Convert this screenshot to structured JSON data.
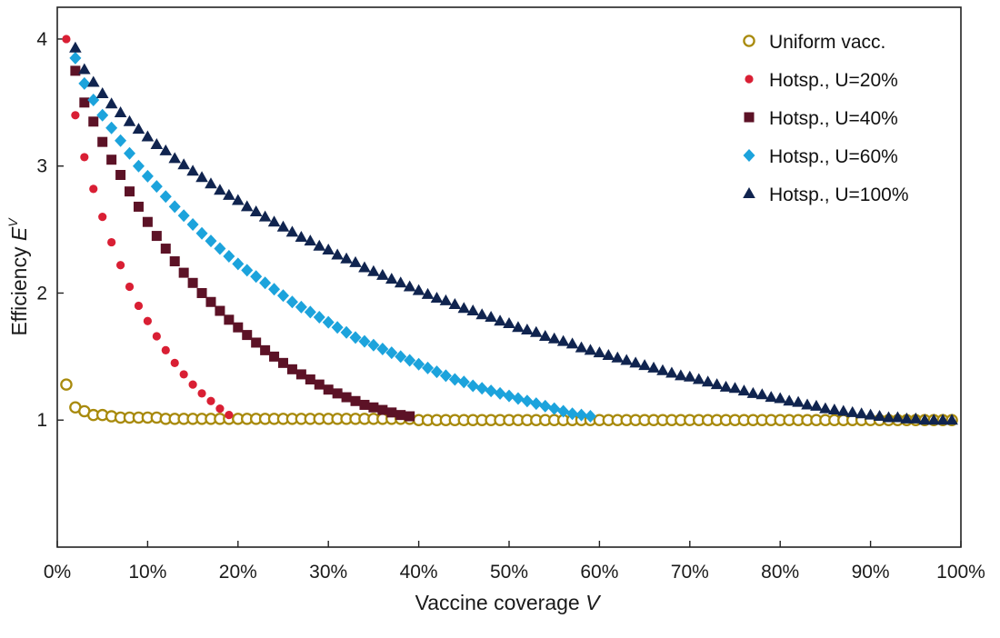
{
  "chart_data": {
    "type": "scatter",
    "title": "",
    "xlabel": "Vaccine coverage",
    "xlabel_var": "V",
    "ylabel": "Efficiency",
    "ylabel_var": "E",
    "ylabel_sup": "V",
    "xlim": [
      0,
      100
    ],
    "ylim": [
      0,
      4.25
    ],
    "x_ticks": [
      0,
      10,
      20,
      30,
      40,
      50,
      60,
      70,
      80,
      90,
      100
    ],
    "x_tick_labels": [
      "0%",
      "10%",
      "20%",
      "30%",
      "40%",
      "50%",
      "60%",
      "70%",
      "80%",
      "90%",
      "100%"
    ],
    "y_ticks": [
      1,
      2,
      3,
      4
    ],
    "y_tick_labels": [
      "1",
      "2",
      "3",
      "4"
    ],
    "grid": false,
    "legend_position": "top-right",
    "series": [
      {
        "name": "Uniform vacc.",
        "marker": "circle-open",
        "color": "#a88a0c",
        "x": [
          1,
          2,
          3,
          4,
          5,
          6,
          7,
          8,
          9,
          10,
          11,
          12,
          13,
          14,
          15,
          16,
          17,
          18,
          19,
          20,
          21,
          22,
          23,
          24,
          25,
          26,
          27,
          28,
          29,
          30,
          31,
          32,
          33,
          34,
          35,
          36,
          37,
          38,
          39,
          40,
          41,
          42,
          43,
          44,
          45,
          46,
          47,
          48,
          49,
          50,
          51,
          52,
          53,
          54,
          55,
          56,
          57,
          58,
          59,
          60,
          61,
          62,
          63,
          64,
          65,
          66,
          67,
          68,
          69,
          70,
          71,
          72,
          73,
          74,
          75,
          76,
          77,
          78,
          79,
          80,
          81,
          82,
          83,
          84,
          85,
          86,
          87,
          88,
          89,
          90,
          91,
          92,
          93,
          94,
          95,
          96,
          97,
          98,
          99
        ],
        "y": [
          1.28,
          1.1,
          1.07,
          1.04,
          1.04,
          1.03,
          1.02,
          1.02,
          1.02,
          1.02,
          1.02,
          1.01,
          1.01,
          1.01,
          1.01,
          1.01,
          1.01,
          1.01,
          1.01,
          1.01,
          1.01,
          1.01,
          1.01,
          1.01,
          1.01,
          1.01,
          1.01,
          1.01,
          1.01,
          1.01,
          1.01,
          1.01,
          1.01,
          1.01,
          1.01,
          1.01,
          1.01,
          1.01,
          1.01,
          1.0,
          1.0,
          1.0,
          1.0,
          1.0,
          1.0,
          1.0,
          1.0,
          1.0,
          1.0,
          1.0,
          1.0,
          1.0,
          1.0,
          1.0,
          1.0,
          1.0,
          1.0,
          1.0,
          1.0,
          1.0,
          1.0,
          1.0,
          1.0,
          1.0,
          1.0,
          1.0,
          1.0,
          1.0,
          1.0,
          1.0,
          1.0,
          1.0,
          1.0,
          1.0,
          1.0,
          1.0,
          1.0,
          1.0,
          1.0,
          1.0,
          1.0,
          1.0,
          1.0,
          1.0,
          1.0,
          1.0,
          1.0,
          1.0,
          1.0,
          1.0,
          1.0,
          1.0,
          1.0,
          1.0,
          1.0,
          1.0,
          1.0,
          1.0,
          1.0
        ]
      },
      {
        "name": "Hotsp., U=20%",
        "marker": "circle-small",
        "color": "#d91f34",
        "x": [
          1,
          2,
          3,
          4,
          5,
          6,
          7,
          8,
          9,
          10,
          11,
          12,
          13,
          14,
          15,
          16,
          17,
          18,
          19
        ],
        "y": [
          4.0,
          3.4,
          3.07,
          2.82,
          2.6,
          2.4,
          2.22,
          2.05,
          1.9,
          1.78,
          1.66,
          1.55,
          1.45,
          1.36,
          1.28,
          1.21,
          1.15,
          1.09,
          1.04
        ]
      },
      {
        "name": "Hotsp., U=40%",
        "marker": "square",
        "color": "#5c1226",
        "x": [
          2,
          3,
          4,
          5,
          6,
          7,
          8,
          9,
          10,
          11,
          12,
          13,
          14,
          15,
          16,
          17,
          18,
          19,
          20,
          21,
          22,
          23,
          24,
          25,
          26,
          27,
          28,
          29,
          30,
          31,
          32,
          33,
          34,
          35,
          36,
          37,
          38,
          39
        ],
        "y": [
          3.75,
          3.5,
          3.35,
          3.19,
          3.05,
          2.93,
          2.8,
          2.68,
          2.56,
          2.45,
          2.35,
          2.25,
          2.16,
          2.08,
          2.0,
          1.93,
          1.86,
          1.79,
          1.73,
          1.67,
          1.61,
          1.55,
          1.5,
          1.45,
          1.4,
          1.36,
          1.32,
          1.28,
          1.24,
          1.21,
          1.18,
          1.15,
          1.12,
          1.1,
          1.08,
          1.06,
          1.04,
          1.03
        ]
      },
      {
        "name": "Hotsp., U=60%",
        "marker": "diamond",
        "color": "#1ca3dc",
        "x": [
          2,
          3,
          4,
          5,
          6,
          7,
          8,
          9,
          10,
          11,
          12,
          13,
          14,
          15,
          16,
          17,
          18,
          19,
          20,
          21,
          22,
          23,
          24,
          25,
          26,
          27,
          28,
          29,
          30,
          31,
          32,
          33,
          34,
          35,
          36,
          37,
          38,
          39,
          40,
          41,
          42,
          43,
          44,
          45,
          46,
          47,
          48,
          49,
          50,
          51,
          52,
          53,
          54,
          55,
          56,
          57,
          58,
          59
        ],
        "y": [
          3.85,
          3.65,
          3.52,
          3.4,
          3.3,
          3.2,
          3.1,
          3.0,
          2.92,
          2.84,
          2.76,
          2.68,
          2.61,
          2.54,
          2.47,
          2.41,
          2.35,
          2.29,
          2.23,
          2.18,
          2.13,
          2.08,
          2.03,
          1.98,
          1.93,
          1.89,
          1.85,
          1.81,
          1.77,
          1.73,
          1.69,
          1.65,
          1.62,
          1.59,
          1.56,
          1.53,
          1.5,
          1.47,
          1.44,
          1.41,
          1.38,
          1.35,
          1.32,
          1.3,
          1.27,
          1.25,
          1.23,
          1.21,
          1.19,
          1.17,
          1.15,
          1.13,
          1.11,
          1.09,
          1.07,
          1.05,
          1.04,
          1.03
        ]
      },
      {
        "name": "Hotsp., U=100%",
        "marker": "triangle",
        "color": "#10244f",
        "x": [
          2,
          3,
          4,
          5,
          6,
          7,
          8,
          9,
          10,
          11,
          12,
          13,
          14,
          15,
          16,
          17,
          18,
          19,
          20,
          21,
          22,
          23,
          24,
          25,
          26,
          27,
          28,
          29,
          30,
          31,
          32,
          33,
          34,
          35,
          36,
          37,
          38,
          39,
          40,
          41,
          42,
          43,
          44,
          45,
          46,
          47,
          48,
          49,
          50,
          51,
          52,
          53,
          54,
          55,
          56,
          57,
          58,
          59,
          60,
          61,
          62,
          63,
          64,
          65,
          66,
          67,
          68,
          69,
          70,
          71,
          72,
          73,
          74,
          75,
          76,
          77,
          78,
          79,
          80,
          81,
          82,
          83,
          84,
          85,
          86,
          87,
          88,
          89,
          90,
          91,
          92,
          93,
          94,
          95,
          96,
          97,
          98,
          99
        ],
        "y": [
          3.93,
          3.76,
          3.66,
          3.57,
          3.49,
          3.42,
          3.35,
          3.29,
          3.23,
          3.17,
          3.12,
          3.06,
          3.01,
          2.96,
          2.91,
          2.86,
          2.81,
          2.77,
          2.73,
          2.68,
          2.64,
          2.6,
          2.56,
          2.52,
          2.48,
          2.44,
          2.41,
          2.37,
          2.34,
          2.3,
          2.27,
          2.24,
          2.2,
          2.17,
          2.14,
          2.11,
          2.08,
          2.05,
          2.02,
          1.99,
          1.96,
          1.94,
          1.91,
          1.88,
          1.86,
          1.83,
          1.81,
          1.78,
          1.76,
          1.73,
          1.71,
          1.69,
          1.66,
          1.64,
          1.62,
          1.6,
          1.57,
          1.55,
          1.53,
          1.51,
          1.49,
          1.47,
          1.45,
          1.43,
          1.41,
          1.39,
          1.37,
          1.35,
          1.34,
          1.32,
          1.3,
          1.28,
          1.26,
          1.25,
          1.23,
          1.21,
          1.2,
          1.18,
          1.17,
          1.15,
          1.14,
          1.12,
          1.11,
          1.09,
          1.08,
          1.07,
          1.06,
          1.05,
          1.04,
          1.03,
          1.02,
          1.02,
          1.01,
          1.01,
          1.0,
          1.0,
          1.0,
          1.0
        ]
      }
    ]
  }
}
